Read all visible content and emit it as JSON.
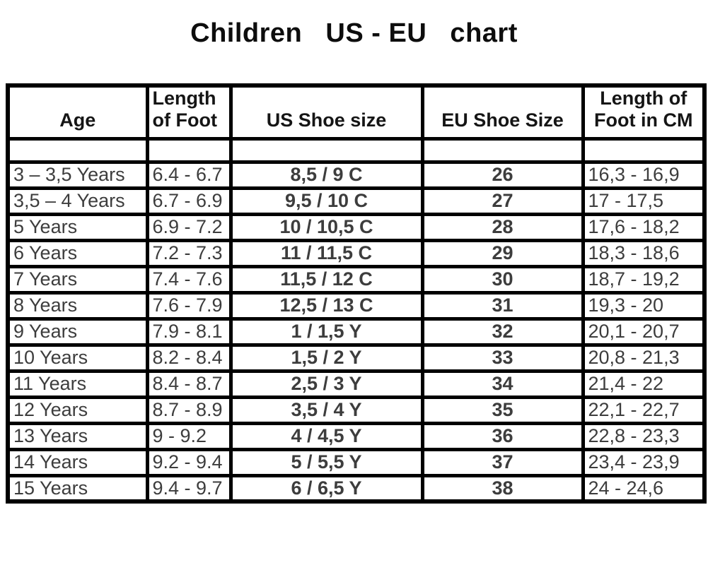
{
  "title": "Children   US - EU   chart",
  "colors": {
    "background": "#ffffff",
    "border": "#000000",
    "title_text": "#0d0d0d",
    "regular_text": "#3d3d3d",
    "bold_text": "#161616"
  },
  "chart_data": {
    "type": "table",
    "title": "Children   US - EU   chart",
    "columns": [
      "Age",
      "Length\nof Foot",
      "US Shoe size",
      "EU Shoe Size",
      "Length of\nFoot in CM"
    ],
    "rows": [
      [
        "3 – 3,5 Years",
        "6.4 - 6.7",
        "8,5 / 9 C",
        "26",
        "16,3 - 16,9"
      ],
      [
        "3,5 – 4 Years",
        "6.7 - 6.9",
        "9,5 / 10 C",
        "27",
        "17 - 17,5"
      ],
      [
        "5 Years",
        "6.9 - 7.2",
        "10 / 10,5 C",
        "28",
        "17,6 - 18,2"
      ],
      [
        "6 Years",
        "7.2 - 7.3",
        "11 / 11,5 C",
        "29",
        "18,3 - 18,6"
      ],
      [
        "7 Years",
        "7.4 - 7.6",
        "11,5 / 12 C",
        "30",
        "18,7 - 19,2"
      ],
      [
        "8 Years",
        "7.6 - 7.9",
        "12,5 / 13 C",
        "31",
        "19,3 - 20"
      ],
      [
        "9 Years",
        "7.9 - 8.1",
        "1 / 1,5 Y",
        "32",
        "20,1 - 20,7"
      ],
      [
        "10 Years",
        "8.2 - 8.4",
        "1,5 / 2 Y",
        "33",
        "20,8 - 21,3"
      ],
      [
        "11 Years",
        "8.4 - 8.7",
        "2,5 / 3 Y",
        "34",
        "21,4 - 22"
      ],
      [
        "12 Years",
        "8.7 - 8.9",
        "3,5 / 4 Y",
        "35",
        "22,1 - 22,7"
      ],
      [
        "13 Years",
        "9 - 9.2",
        "4 / 4,5 Y",
        "36",
        "22,8 - 23,3"
      ],
      [
        "14 Years",
        "9.2 - 9.4",
        "5 / 5,5 Y",
        "37",
        "23,4 - 23,9"
      ],
      [
        "15 Years",
        "9.4 - 9.7",
        "6 / 6,5 Y",
        "38",
        "24 - 24,6"
      ]
    ]
  }
}
